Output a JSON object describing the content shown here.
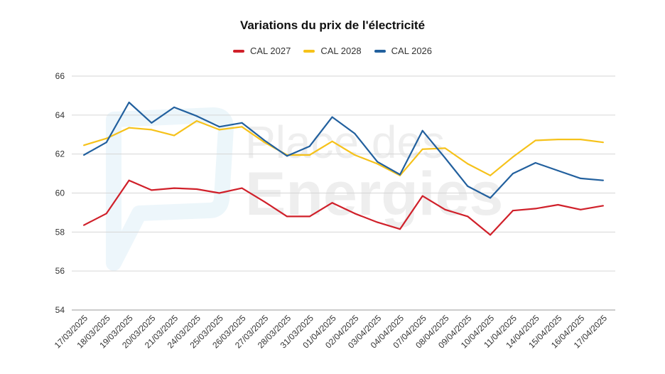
{
  "chart_data": {
    "type": "line",
    "title": "Variations du prix de l'électricité",
    "xlabel": "",
    "ylabel": "",
    "ylim": [
      54,
      66
    ],
    "yticks": [
      54,
      56,
      58,
      60,
      62,
      64,
      66
    ],
    "grid": true,
    "legend_position": "top-center",
    "categories": [
      "17/03/2025",
      "18/03/2025",
      "19/03/2025",
      "20/03/2025",
      "21/03/2025",
      "24/03/2025",
      "25/03/2025",
      "26/03/2025",
      "27/03/2025",
      "28/03/2025",
      "31/03/2025",
      "01/04/2025",
      "02/04/2025",
      "03/04/2025",
      "04/04/2025",
      "07/04/2025",
      "08/04/2025",
      "09/04/2025",
      "10/04/2025",
      "11/04/2025",
      "14/04/2025",
      "15/04/2025",
      "16/04/2025",
      "17/04/2025"
    ],
    "series": [
      {
        "name": "CAL 2027",
        "color": "#d0202a",
        "values": [
          58.35,
          58.95,
          60.65,
          60.15,
          60.25,
          60.2,
          60.0,
          60.25,
          59.55,
          58.8,
          58.8,
          59.5,
          58.95,
          58.5,
          58.15,
          59.85,
          59.15,
          58.8,
          57.85,
          59.1,
          59.2,
          59.4,
          59.15,
          59.35
        ]
      },
      {
        "name": "CAL 2028",
        "color": "#f6c21a",
        "values": [
          62.45,
          62.8,
          63.35,
          63.25,
          62.95,
          63.7,
          63.25,
          63.4,
          62.6,
          61.95,
          61.95,
          62.65,
          61.95,
          61.5,
          60.9,
          62.25,
          62.3,
          61.5,
          60.9,
          61.85,
          62.7,
          62.75,
          62.75,
          62.6
        ]
      },
      {
        "name": "CAL 2026",
        "color": "#22609e",
        "values": [
          61.95,
          62.6,
          64.65,
          63.6,
          64.4,
          63.95,
          63.4,
          63.6,
          62.7,
          61.9,
          62.4,
          63.9,
          63.05,
          61.6,
          60.95,
          63.2,
          61.8,
          60.35,
          59.75,
          61.0,
          61.55,
          61.15,
          60.75,
          60.65
        ]
      }
    ],
    "legend_order": [
      "CAL 2027",
      "CAL 2028",
      "CAL 2026"
    ],
    "watermark": "Place des Energies"
  }
}
